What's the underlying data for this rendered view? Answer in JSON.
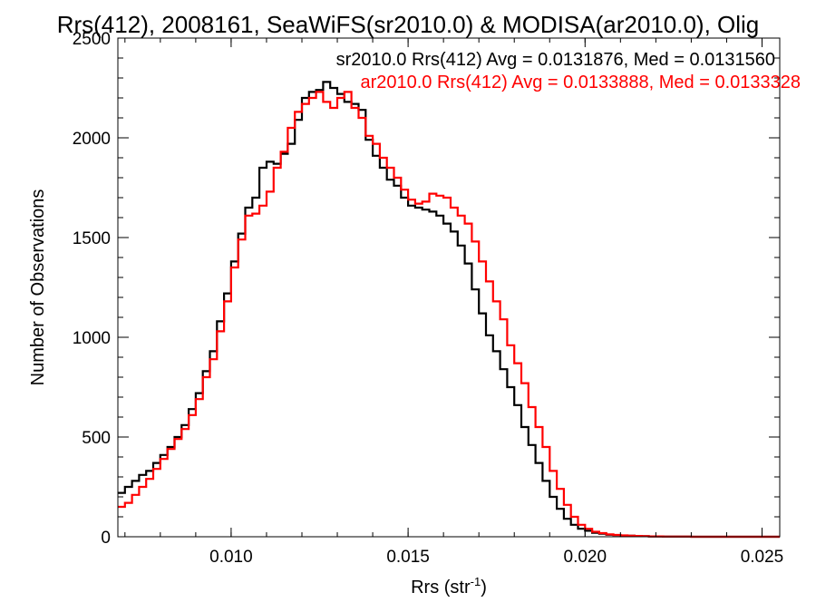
{
  "chart_data": {
    "type": "line",
    "title": "Rrs(412), 2008161, SeaWiFS(sr2010.0) & MODISA(ar2010.0), Olig",
    "xlabel": "Rrs (str",
    "xlabel_sup": "-1",
    "xlabel_close": ")",
    "ylabel": "Number of Observations",
    "xlim": [
      0.0068,
      0.0255
    ],
    "ylim": [
      0,
      2500
    ],
    "xticks": [
      0.01,
      0.015,
      0.02,
      0.025
    ],
    "xtick_labels": [
      "0.010",
      "0.015",
      "0.020",
      "0.025"
    ],
    "yticks": [
      0,
      500,
      1000,
      1500,
      2000,
      2500
    ],
    "ytick_labels": [
      "0",
      "500",
      "1000",
      "1500",
      "2000",
      "2500"
    ],
    "grid": false,
    "legend_position": "top-right",
    "legend": [
      {
        "text": "sr2010.0 Rrs(412) Avg = 0.0131876, Med = 0.0131560",
        "color": "#000000"
      },
      {
        "text": "ar2010.0 Rrs(412) Avg = 0.0133888, Med = 0.0133328",
        "color": "#ff0000"
      }
    ],
    "series": [
      {
        "color": "#000000",
        "x": [
          0.0068,
          0.007,
          0.0072,
          0.0074,
          0.0076,
          0.0078,
          0.008,
          0.0082,
          0.0084,
          0.0086,
          0.0088,
          0.009,
          0.0092,
          0.0094,
          0.0096,
          0.0098,
          0.01,
          0.0102,
          0.0104,
          0.0106,
          0.0108,
          0.011,
          0.0112,
          0.0114,
          0.0116,
          0.0118,
          0.012,
          0.0122,
          0.0124,
          0.0126,
          0.0128,
          0.013,
          0.0132,
          0.0134,
          0.0136,
          0.0138,
          0.014,
          0.0142,
          0.0144,
          0.0146,
          0.0148,
          0.015,
          0.0152,
          0.0154,
          0.0156,
          0.0158,
          0.016,
          0.0162,
          0.0164,
          0.0166,
          0.0168,
          0.017,
          0.0172,
          0.0174,
          0.0176,
          0.0178,
          0.018,
          0.0182,
          0.0184,
          0.0186,
          0.0188,
          0.019,
          0.0192,
          0.0194,
          0.0196,
          0.0198,
          0.02,
          0.0202,
          0.0204,
          0.0206,
          0.0208,
          0.021,
          0.0212,
          0.0214,
          0.0216,
          0.0218,
          0.022,
          0.0222,
          0.0224,
          0.0226,
          0.0228,
          0.023,
          0.0232,
          0.0234,
          0.0236,
          0.0238,
          0.024,
          0.0242,
          0.0244,
          0.0246,
          0.0248,
          0.025,
          0.0252,
          0.0254
        ],
        "y": [
          220,
          250,
          280,
          310,
          330,
          370,
          410,
          450,
          500,
          560,
          640,
          720,
          830,
          930,
          1080,
          1220,
          1380,
          1520,
          1650,
          1700,
          1850,
          1880,
          1870,
          1920,
          1970,
          2090,
          2200,
          2230,
          2240,
          2280,
          2250,
          2220,
          2180,
          2170,
          2140,
          1990,
          1910,
          1850,
          1790,
          1760,
          1700,
          1660,
          1650,
          1640,
          1630,
          1610,
          1570,
          1530,
          1460,
          1370,
          1240,
          1120,
          1010,
          930,
          840,
          750,
          660,
          550,
          460,
          370,
          280,
          200,
          140,
          90,
          60,
          40,
          30,
          20,
          15,
          10,
          8,
          6,
          5,
          4,
          3,
          2,
          2,
          1,
          1,
          1,
          1,
          0,
          0,
          0,
          0,
          0,
          0,
          0,
          0,
          0,
          0,
          0,
          0,
          0
        ]
      },
      {
        "color": "#ff0000",
        "x": [
          0.0068,
          0.007,
          0.0072,
          0.0074,
          0.0076,
          0.0078,
          0.008,
          0.0082,
          0.0084,
          0.0086,
          0.0088,
          0.009,
          0.0092,
          0.0094,
          0.0096,
          0.0098,
          0.01,
          0.0102,
          0.0104,
          0.0106,
          0.0108,
          0.011,
          0.0112,
          0.0114,
          0.0116,
          0.0118,
          0.012,
          0.0122,
          0.0124,
          0.0126,
          0.0128,
          0.013,
          0.0132,
          0.0134,
          0.0136,
          0.0138,
          0.014,
          0.0142,
          0.0144,
          0.0146,
          0.0148,
          0.015,
          0.0152,
          0.0154,
          0.0156,
          0.0158,
          0.016,
          0.0162,
          0.0164,
          0.0166,
          0.0168,
          0.017,
          0.0172,
          0.0174,
          0.0176,
          0.0178,
          0.018,
          0.0182,
          0.0184,
          0.0186,
          0.0188,
          0.019,
          0.0192,
          0.0194,
          0.0196,
          0.0198,
          0.02,
          0.0202,
          0.0204,
          0.0206,
          0.0208,
          0.021,
          0.0212,
          0.0214,
          0.0216,
          0.0218,
          0.022,
          0.0222,
          0.0224,
          0.0226,
          0.0228,
          0.023,
          0.0232,
          0.0234,
          0.0236,
          0.0238,
          0.024,
          0.0242,
          0.0244,
          0.0246,
          0.0248,
          0.025,
          0.0252,
          0.0254
        ],
        "y": [
          150,
          170,
          210,
          250,
          290,
          340,
          390,
          440,
          490,
          540,
          610,
          690,
          800,
          890,
          1030,
          1180,
          1350,
          1490,
          1610,
          1620,
          1660,
          1730,
          1850,
          1930,
          2050,
          2130,
          2170,
          2200,
          2230,
          2180,
          2150,
          2200,
          2230,
          2150,
          2100,
          2010,
          1970,
          1900,
          1850,
          1800,
          1740,
          1690,
          1670,
          1680,
          1720,
          1710,
          1700,
          1650,
          1610,
          1570,
          1480,
          1380,
          1280,
          1180,
          1090,
          960,
          870,
          770,
          650,
          550,
          450,
          330,
          240,
          160,
          100,
          60,
          40,
          25,
          18,
          12,
          9,
          7,
          5,
          4,
          3,
          2,
          2,
          1,
          1,
          1,
          1,
          0,
          0,
          0,
          0,
          0,
          0,
          0,
          0,
          0,
          0,
          0,
          0,
          0
        ]
      }
    ]
  }
}
